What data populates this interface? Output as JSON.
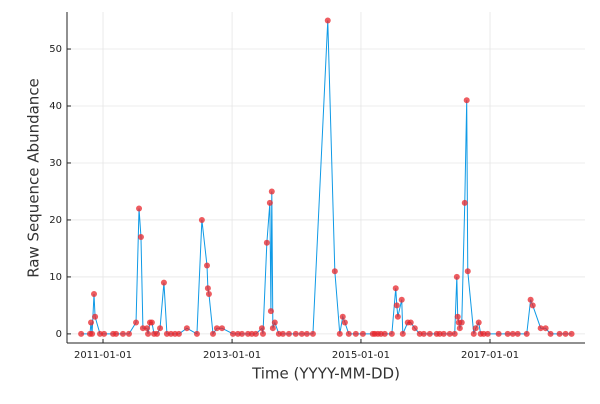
{
  "chart_data": {
    "type": "line",
    "x_label": "Time (YYYY-MM-DD)",
    "y_label": "Raw Sequence Abundance",
    "x": [
      "2010-08-30",
      "2010-10-19",
      "2010-10-25",
      "2010-10-31",
      "2010-11-11",
      "2010-11-17",
      "2010-12-15",
      "2011-01-07",
      "2011-02-27",
      "2011-03-16",
      "2011-04-24",
      "2011-05-28",
      "2011-07-07",
      "2011-07-24",
      "2011-08-04",
      "2011-08-15",
      "2011-09-07",
      "2011-09-13",
      "2011-09-24",
      "2011-10-05",
      "2011-10-17",
      "2011-11-03",
      "2011-11-20",
      "2011-12-12",
      "2011-12-29",
      "2012-01-21",
      "2012-02-13",
      "2012-03-06",
      "2012-04-20",
      "2012-06-16",
      "2012-07-14",
      "2012-08-12",
      "2012-08-17",
      "2012-08-23",
      "2012-09-15",
      "2012-10-07",
      "2012-11-05",
      "2013-01-06",
      "2013-02-03",
      "2013-02-26",
      "2013-04-01",
      "2013-04-23",
      "2013-05-16",
      "2013-06-19",
      "2013-06-25",
      "2013-07-17",
      "2013-08-03",
      "2013-08-09",
      "2013-08-14",
      "2013-08-20",
      "2013-08-31",
      "2013-09-23",
      "2013-10-16",
      "2013-11-19",
      "2013-12-28",
      "2014-01-31",
      "2014-03-01",
      "2014-04-04",
      "2014-06-27",
      "2014-08-06",
      "2014-09-03",
      "2014-09-20",
      "2014-10-02",
      "2014-10-24",
      "2014-12-03",
      "2015-01-12",
      "2015-03-09",
      "2015-03-21",
      "2015-04-07",
      "2015-04-24",
      "2015-05-16",
      "2015-06-25",
      "2015-07-17",
      "2015-07-23",
      "2015-07-29",
      "2015-08-20",
      "2015-08-26",
      "2015-09-23",
      "2015-10-10",
      "2015-11-02",
      "2015-11-30",
      "2015-12-23",
      "2016-01-26",
      "2016-03-05",
      "2016-03-22",
      "2016-04-14",
      "2016-05-18",
      "2016-06-15",
      "2016-06-27",
      "2016-07-02",
      "2016-07-08",
      "2016-07-14",
      "2016-07-25",
      "2016-08-11",
      "2016-08-22",
      "2016-08-28",
      "2016-10-01",
      "2016-10-12",
      "2016-10-29",
      "2016-11-09",
      "2016-11-26",
      "2016-12-19",
      "2017-02-19",
      "2017-04-11",
      "2017-05-10",
      "2017-06-07",
      "2017-07-28",
      "2017-08-19",
      "2017-08-31",
      "2017-10-15",
      "2017-11-12",
      "2017-12-10",
      "2018-01-30",
      "2018-03-05",
      "2018-04-08"
    ],
    "values": [
      0,
      0,
      2,
      0,
      7,
      3,
      0,
      0,
      0,
      0,
      0,
      0,
      2,
      22,
      17,
      1,
      1,
      0,
      2,
      2,
      0,
      0,
      1,
      9,
      0,
      0,
      0,
      0,
      1,
      0,
      20,
      12,
      8,
      7,
      0,
      1,
      1,
      0,
      0,
      0,
      0,
      0,
      0,
      1,
      0,
      16,
      23,
      4,
      25,
      1,
      2,
      0,
      0,
      0,
      0,
      0,
      0,
      0,
      55,
      11,
      0,
      3,
      2,
      0,
      0,
      0,
      0,
      0,
      0,
      0,
      0,
      0,
      8,
      5,
      3,
      6,
      0,
      2,
      2,
      1,
      0,
      0,
      0,
      0,
      0,
      0,
      0,
      0,
      10,
      3,
      2,
      1,
      2,
      23,
      41,
      11,
      0,
      1,
      2,
      0,
      0,
      0,
      0,
      0,
      0,
      0,
      0,
      6,
      5,
      1,
      1,
      0,
      0,
      0,
      0
    ],
    "line_color": "#0f9ae6",
    "marker_color": "#e8262b",
    "xlim": [
      "2010-06-11",
      "2018-06-23"
    ],
    "xticks": [
      "2011-01-01",
      "2013-01-01",
      "2015-01-01",
      "2017-01-01"
    ],
    "ylim": [
      -1.6,
      56.5
    ],
    "yticks": [
      0,
      10,
      20,
      30,
      40,
      50
    ],
    "grid": true
  }
}
